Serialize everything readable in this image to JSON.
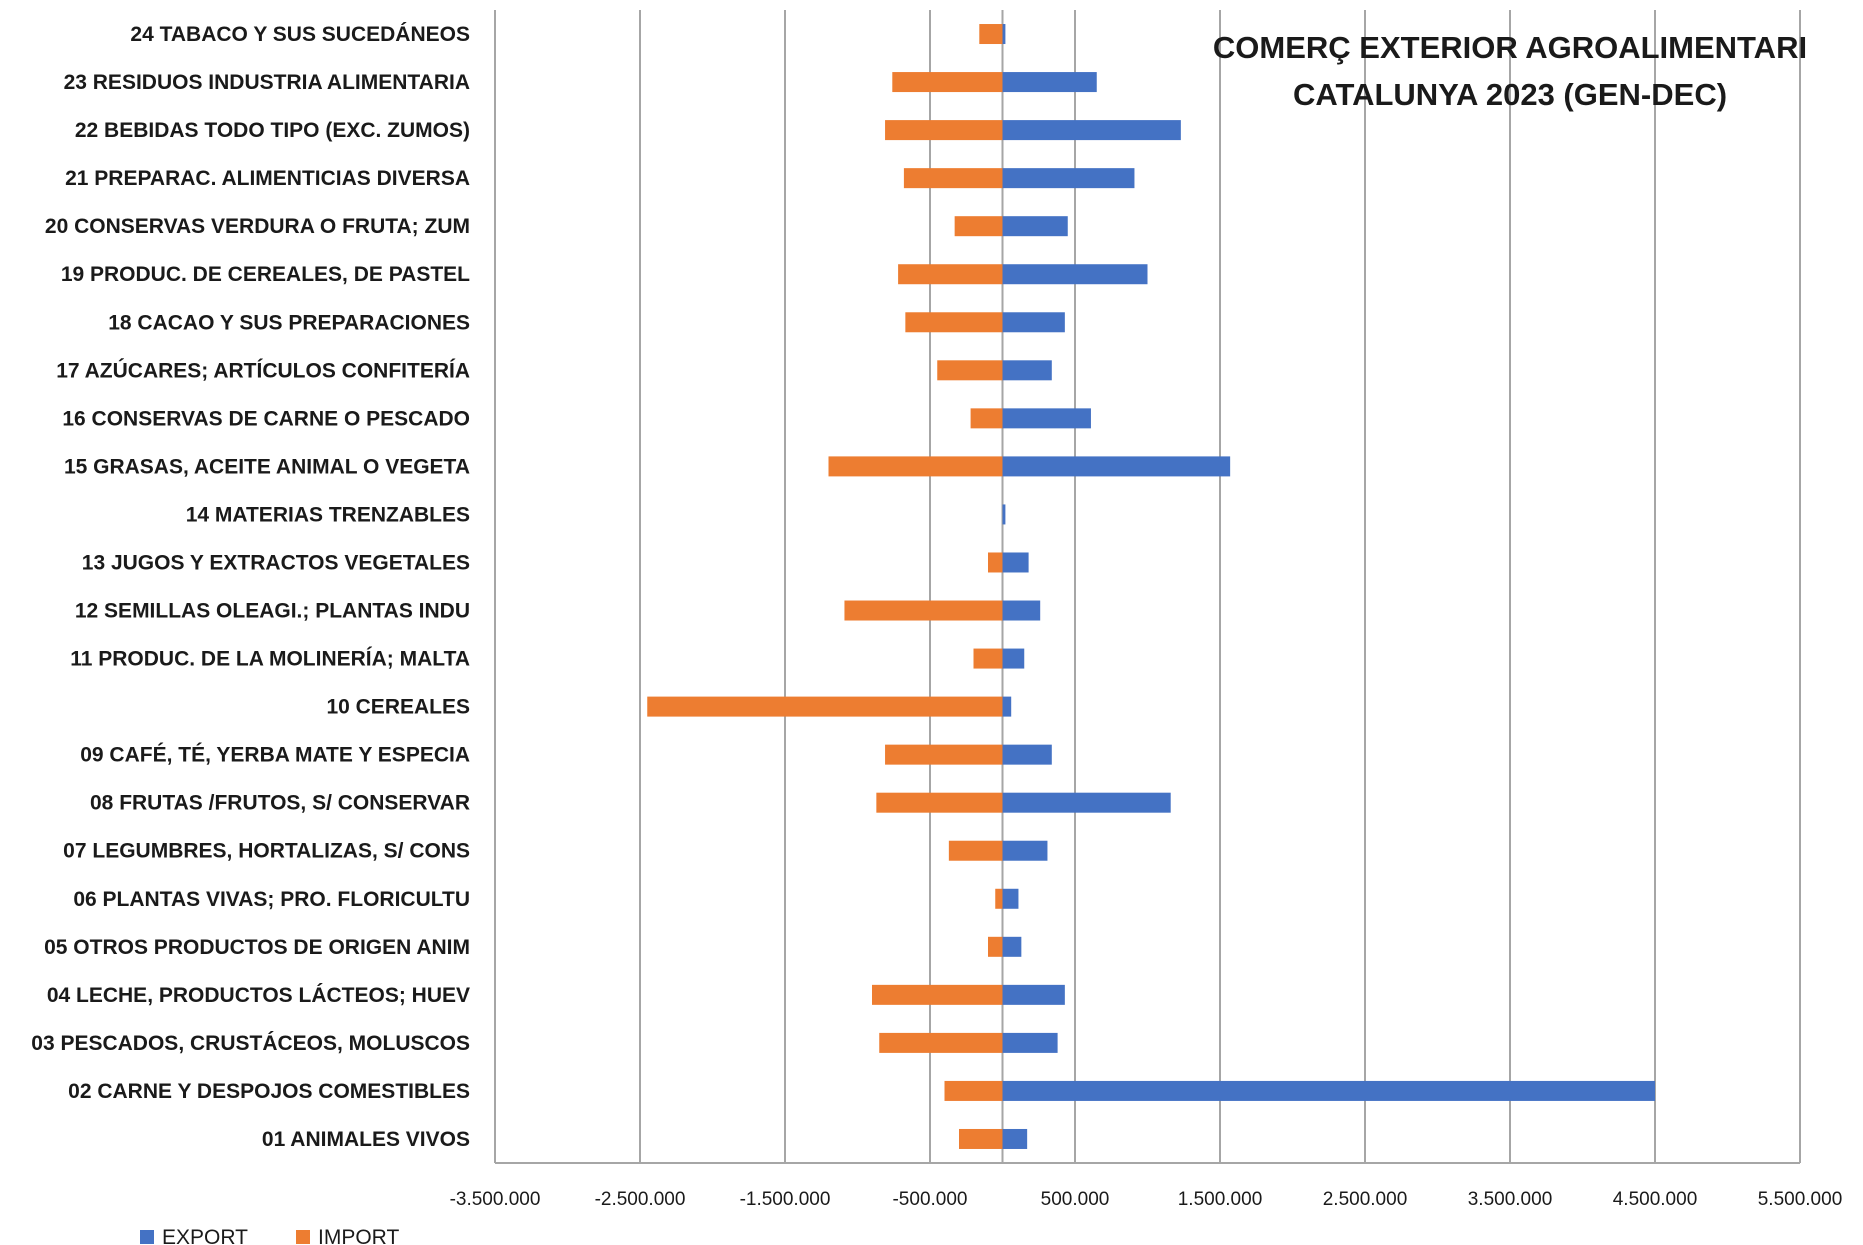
{
  "chart_data": {
    "type": "bar",
    "orientation": "horizontal",
    "title_lines": [
      "COMERÇ EXTERIOR AGROALIMENTARI",
      "CATALUNYA 2023 (GEN-DEC)"
    ],
    "categories": [
      "01 ANIMALES VIVOS",
      "02 CARNE Y DESPOJOS COMESTIBLES",
      "03 PESCADOS, CRUSTÁCEOS, MOLUSCOS",
      "04 LECHE, PRODUCTOS LÁCTEOS; HUEV",
      "05 OTROS PRODUCTOS DE ORIGEN ANIM",
      "06 PLANTAS VIVAS; PRO. FLORICULTU",
      "07 LEGUMBRES, HORTALIZAS, S/ CONS",
      "08 FRUTAS /FRUTOS, S/ CONSERVAR",
      "09 CAFÉ, TÉ, YERBA MATE Y ESPECIA",
      "10 CEREALES",
      "11 PRODUC. DE LA MOLINERÍA; MALTA",
      "12 SEMILLAS OLEAGI.; PLANTAS INDU",
      "13 JUGOS Y EXTRACTOS VEGETALES",
      "14 MATERIAS TRENZABLES",
      "15 GRASAS, ACEITE ANIMAL O VEGETA",
      "16 CONSERVAS DE CARNE O PESCADO",
      "17 AZÚCARES; ARTÍCULOS CONFITERÍA",
      "18 CACAO Y SUS PREPARACIONES",
      "19 PRODUC. DE CEREALES, DE PASTEL",
      "20 CONSERVAS VERDURA O FRUTA; ZUM",
      "21 PREPARAC. ALIMENTICIAS DIVERSA",
      "22 BEBIDAS TODO TIPO (EXC. ZUMOS)",
      "23 RESIDUOS INDUSTRIA ALIMENTARIA",
      "24 TABACO Y SUS SUCEDÁNEOS"
    ],
    "series": [
      {
        "name": "EXPORT",
        "color": "#4472C4",
        "values": [
          170000,
          4500000,
          380000,
          430000,
          130000,
          110000,
          310000,
          1160000,
          340000,
          60000,
          150000,
          260000,
          180000,
          20000,
          1570000,
          610000,
          340000,
          430000,
          1000000,
          450000,
          910000,
          1230000,
          650000,
          20000
        ]
      },
      {
        "name": "IMPORT",
        "color": "#ED7D31",
        "values": [
          -300000,
          -400000,
          -850000,
          -900000,
          -100000,
          -50000,
          -370000,
          -870000,
          -810000,
          -2450000,
          -200000,
          -1090000,
          -100000,
          0,
          -1200000,
          -220000,
          -450000,
          -670000,
          -720000,
          -330000,
          -680000,
          -810000,
          -760000,
          -160000
        ]
      }
    ],
    "x_ticks": [
      "-3.500.000",
      "-2.500.000",
      "-1.500.000",
      "-500.000",
      "500.000",
      "1.500.000",
      "2.500.000",
      "3.500.000",
      "4.500.000",
      "5.500.000"
    ],
    "x_tick_values": [
      -3500000,
      -2500000,
      -1500000,
      -500000,
      500000,
      1500000,
      2500000,
      3500000,
      4500000,
      5500000
    ],
    "xlim": [
      -3500000,
      5500000
    ],
    "grid": "vertical",
    "legend": "bottom-left",
    "legend_labels": [
      "EXPORT",
      "IMPORT"
    ]
  }
}
